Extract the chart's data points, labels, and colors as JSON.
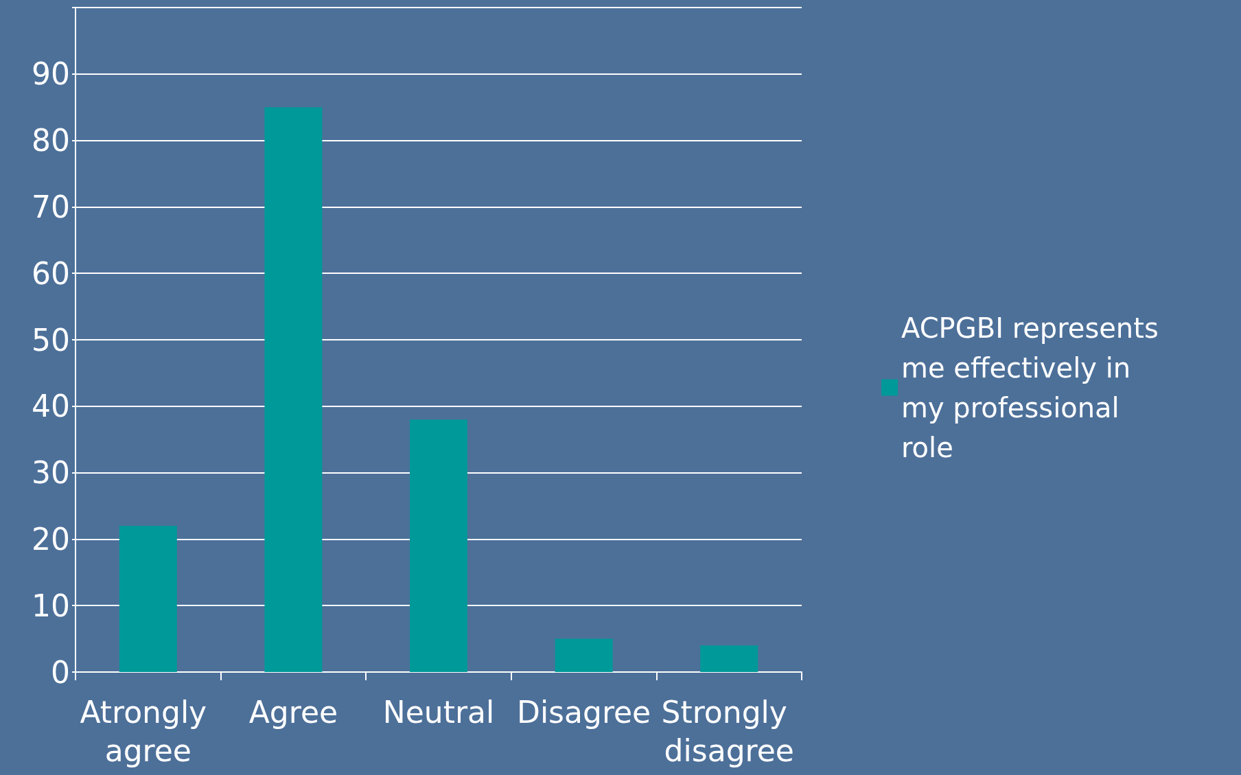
{
  "chart_data": {
    "type": "bar",
    "categories": [
      "Atrongly agree",
      "Agree",
      "Neutral",
      "Disagree",
      "Strongly disagree"
    ],
    "series": [
      {
        "name": "ACPGBI represents me effectively in my professional role",
        "color": "#009999",
        "values": [
          22,
          85,
          38,
          5,
          4
        ]
      }
    ],
    "ylim": [
      0,
      100
    ],
    "yticks": [
      0,
      10,
      20,
      30,
      40,
      50,
      60,
      70,
      80,
      90,
      {
        "value": 100,
        "label": null
      }
    ],
    "grid": "y",
    "legend": "right"
  }
}
